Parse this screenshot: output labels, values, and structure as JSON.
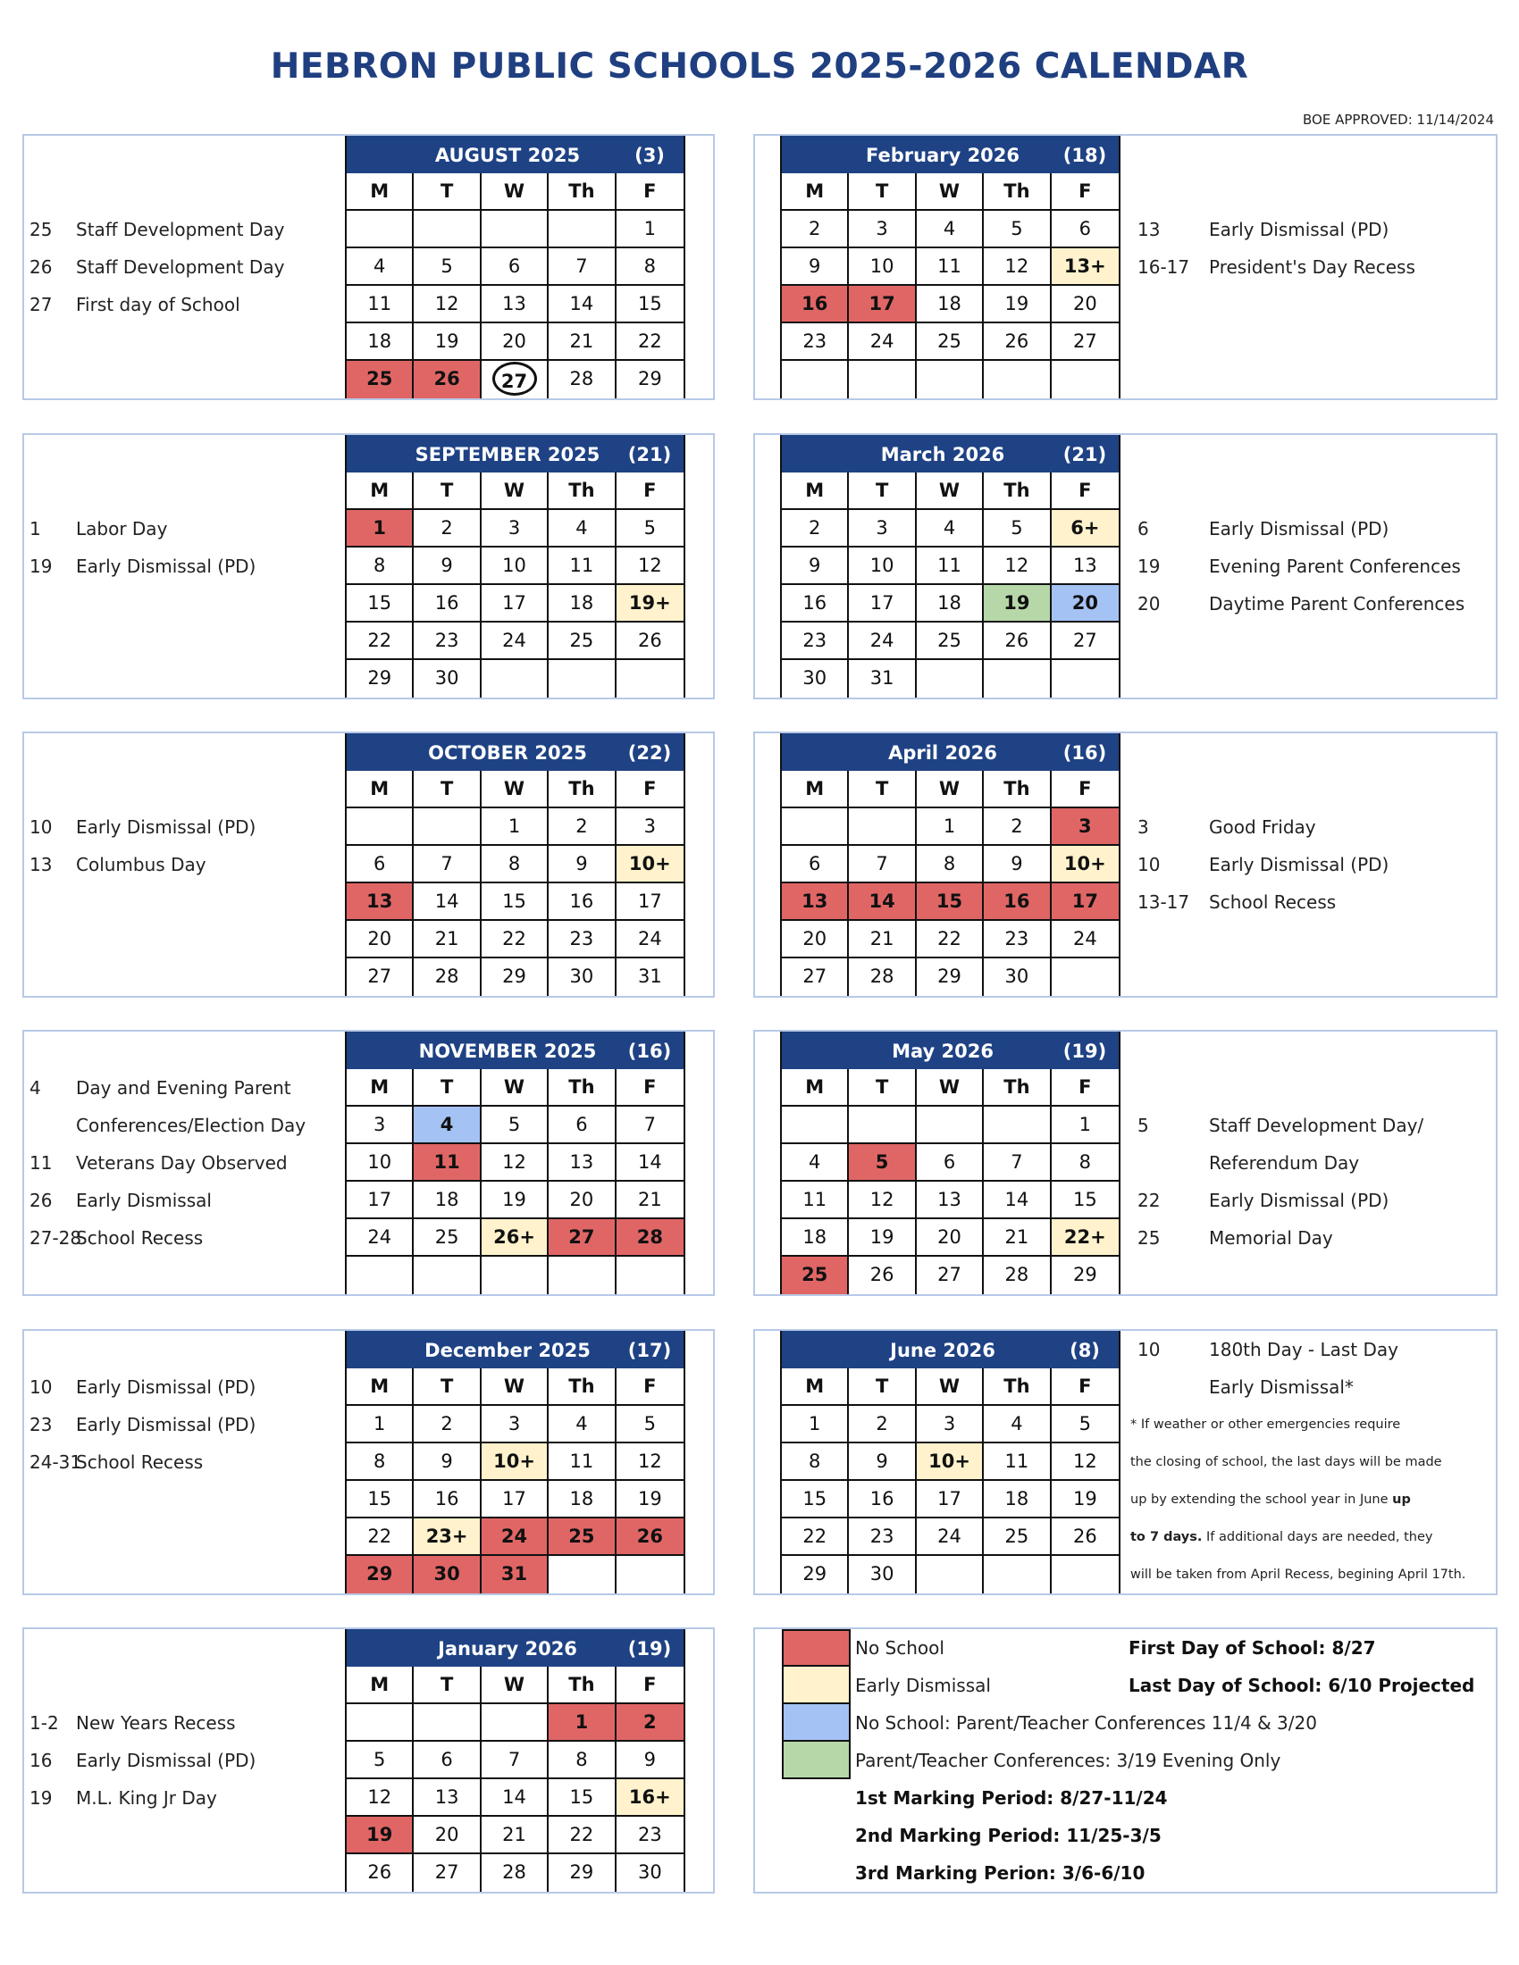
{
  "title": "HEBRON PUBLIC SCHOOLS 2025-2026 CALENDAR",
  "boe_approved": "BOE APPROVED: 11/14/2024",
  "dow": [
    "M",
    "T",
    "W",
    "Th",
    "F"
  ],
  "colors": {
    "header": "#1e4284",
    "no": "#e06666",
    "early": "#fff2cc",
    "conf": "#a4c2f4",
    "eve": "#b6d7a8",
    "title": "#1f3f80"
  },
  "months": [
    {
      "title": "AUGUST 2025",
      "count": "(3)",
      "weeks": [
        [
          "",
          "",
          "",
          "",
          "1"
        ],
        [
          "4",
          "5",
          "6",
          "7",
          "8"
        ],
        [
          "11",
          "12",
          "13",
          "14",
          "15"
        ],
        [
          "18",
          "19",
          "20",
          "21",
          "22"
        ],
        [
          "25",
          "26",
          "27",
          "28",
          "29"
        ]
      ],
      "marks": {
        "25": "no",
        "26": "no",
        "27": "circle"
      },
      "notes": [
        {
          "num": "25",
          "text": "Staff Development Day"
        },
        {
          "num": "26",
          "text": "Staff Development Day"
        },
        {
          "num": "27",
          "text": "First day of School"
        }
      ]
    },
    {
      "title": "February 2026",
      "count": "(18)",
      "weeks": [
        [
          "2",
          "3",
          "4",
          "5",
          "6"
        ],
        [
          "9",
          "10",
          "11",
          "12",
          "13+"
        ],
        [
          "16",
          "17",
          "18",
          "19",
          "20"
        ],
        [
          "23",
          "24",
          "25",
          "26",
          "27"
        ],
        [
          "",
          "",
          "",
          "",
          ""
        ]
      ],
      "marks": {
        "13+": "early",
        "16": "no",
        "17": "no"
      },
      "notes": [
        {
          "num": "13",
          "text": "Early Dismissal (PD)"
        },
        {
          "num": "16-17",
          "text": "President's Day Recess"
        }
      ]
    },
    {
      "title": "SEPTEMBER 2025",
      "count": "(21)",
      "weeks": [
        [
          "1",
          "2",
          "3",
          "4",
          "5"
        ],
        [
          "8",
          "9",
          "10",
          "11",
          "12"
        ],
        [
          "15",
          "16",
          "17",
          "18",
          "19+"
        ],
        [
          "22",
          "23",
          "24",
          "25",
          "26"
        ],
        [
          "29",
          "30",
          "",
          "",
          ""
        ]
      ],
      "marks": {
        "1": "no",
        "19+": "early"
      },
      "notes": [
        {
          "num": "1",
          "text": "Labor Day"
        },
        {
          "num": "19",
          "text": "Early Dismissal (PD)"
        }
      ]
    },
    {
      "title": "March 2026",
      "count": "(21)",
      "weeks": [
        [
          "2",
          "3",
          "4",
          "5",
          "6+"
        ],
        [
          "9",
          "10",
          "11",
          "12",
          "13"
        ],
        [
          "16",
          "17",
          "18",
          "19",
          "20"
        ],
        [
          "23",
          "24",
          "25",
          "26",
          "27"
        ],
        [
          "30",
          "31",
          "",
          "",
          ""
        ]
      ],
      "marks": {
        "6+": "early",
        "19": "eve",
        "20": "conf"
      },
      "notes": [
        {
          "num": "6",
          "text": "Early Dismissal (PD)"
        },
        {
          "num": "19",
          "text": "Evening Parent Conferences"
        },
        {
          "num": "20",
          "text": "Daytime Parent Conferences"
        }
      ]
    },
    {
      "title": "OCTOBER 2025",
      "count": "(22)",
      "weeks": [
        [
          "",
          "",
          "1",
          "2",
          "3"
        ],
        [
          "6",
          "7",
          "8",
          "9",
          "10+"
        ],
        [
          "13",
          "14",
          "15",
          "16",
          "17"
        ],
        [
          "20",
          "21",
          "22",
          "23",
          "24"
        ],
        [
          "27",
          "28",
          "29",
          "30",
          "31"
        ]
      ],
      "marks": {
        "10+": "early",
        "13": "no"
      },
      "notes": [
        {
          "num": "10",
          "text": "Early Dismissal (PD)"
        },
        {
          "num": "13",
          "text": "Columbus Day"
        }
      ]
    },
    {
      "title": "April 2026",
      "count": "(16)",
      "weeks": [
        [
          "",
          "",
          "1",
          "2",
          "3"
        ],
        [
          "6",
          "7",
          "8",
          "9",
          "10+"
        ],
        [
          "13",
          "14",
          "15",
          "16",
          "17"
        ],
        [
          "20",
          "21",
          "22",
          "23",
          "24"
        ],
        [
          "27",
          "28",
          "29",
          "30",
          ""
        ]
      ],
      "marks": {
        "3": "no",
        "10+": "early",
        "13": "no",
        "14": "no",
        "15": "no",
        "16": "no",
        "17": "no"
      },
      "notes": [
        {
          "num": "3",
          "text": "Good Friday"
        },
        {
          "num": "10",
          "text": "Early Dismissal (PD)"
        },
        {
          "num": "13-17",
          "text": "School Recess"
        }
      ]
    },
    {
      "title": "NOVEMBER 2025",
      "count": "(16)",
      "weeks": [
        [
          "3",
          "4",
          "5",
          "6",
          "7"
        ],
        [
          "10",
          "11",
          "12",
          "13",
          "14"
        ],
        [
          "17",
          "18",
          "19",
          "20",
          "21"
        ],
        [
          "24",
          "25",
          "26+",
          "27",
          "28"
        ],
        [
          "",
          "",
          "",
          "",
          ""
        ]
      ],
      "marks": {
        "4": "conf",
        "11": "no",
        "26+": "early",
        "27": "no",
        "28": "no"
      },
      "notes": [
        {
          "num": "4",
          "text": "Day and Evening Parent"
        },
        {
          "num": "",
          "text": "Conferences/Election Day"
        },
        {
          "num": "11",
          "text": "Veterans Day Observed"
        },
        {
          "num": "26",
          "text": "Early Dismissal"
        },
        {
          "num": "27-28",
          "text": "School Recess"
        }
      ]
    },
    {
      "title": "May 2026",
      "count": "(19)",
      "weeks": [
        [
          "",
          "",
          "",
          "",
          "1"
        ],
        [
          "4",
          "5",
          "6",
          "7",
          "8"
        ],
        [
          "11",
          "12",
          "13",
          "14",
          "15"
        ],
        [
          "18",
          "19",
          "20",
          "21",
          "22+"
        ],
        [
          "25",
          "26",
          "27",
          "28",
          "29"
        ]
      ],
      "marks": {
        "5": "no",
        "22+": "early",
        "25": "no"
      },
      "notes": [
        {
          "num": "5",
          "text": "Staff Development Day/"
        },
        {
          "num": "",
          "text": "Referendum Day"
        },
        {
          "num": "22",
          "text": "Early Dismissal (PD)"
        },
        {
          "num": "25",
          "text": "Memorial Day"
        }
      ]
    },
    {
      "title": "December 2025",
      "count": "(17)",
      "weeks": [
        [
          "1",
          "2",
          "3",
          "4",
          "5"
        ],
        [
          "8",
          "9",
          "10+",
          "11",
          "12"
        ],
        [
          "15",
          "16",
          "17",
          "18",
          "19"
        ],
        [
          "22",
          "23+",
          "24",
          "25",
          "26"
        ],
        [
          "29",
          "30",
          "31",
          "",
          ""
        ]
      ],
      "marks": {
        "10+": "early",
        "23+": "early",
        "24": "no",
        "25": "no",
        "26": "no",
        "29": "no",
        "30": "no",
        "31": "no"
      },
      "notes": [
        {
          "num": "10",
          "text": "Early Dismissal (PD)"
        },
        {
          "num": "23",
          "text": "Early Dismissal (PD)"
        },
        {
          "num": "24-31",
          "text": "School Recess"
        }
      ]
    },
    {
      "title": "June 2026",
      "count": "(8)",
      "weeks": [
        [
          "1",
          "2",
          "3",
          "4",
          "5"
        ],
        [
          "8",
          "9",
          "10+",
          "11",
          "12"
        ],
        [
          "15",
          "16",
          "17",
          "18",
          "19"
        ],
        [
          "22",
          "23",
          "24",
          "25",
          "26"
        ],
        [
          "29",
          "30",
          "",
          "",
          ""
        ]
      ],
      "marks": {
        "10+": "early"
      },
      "notes": [
        {
          "num": "10",
          "text": "180th Day - Last Day"
        },
        {
          "num": "",
          "text": "Early Dismissal*"
        }
      ]
    },
    {
      "title": "January 2026",
      "count": "(19)",
      "weeks": [
        [
          "",
          "",
          "",
          "1",
          "2"
        ],
        [
          "5",
          "6",
          "7",
          "8",
          "9"
        ],
        [
          "12",
          "13",
          "14",
          "15",
          "16+"
        ],
        [
          "19",
          "20",
          "21",
          "22",
          "23"
        ],
        [
          "26",
          "27",
          "28",
          "29",
          "30"
        ]
      ],
      "marks": {
        "1": "no",
        "2": "no",
        "16+": "early",
        "19": "no"
      },
      "notes": [
        {
          "num": "1-2",
          "text": "New Years Recess"
        },
        {
          "num": "16",
          "text": "Early Dismissal (PD)"
        },
        {
          "num": "19",
          "text": "M.L. King Jr Day"
        }
      ]
    }
  ],
  "june_footnote": [
    [
      {
        "t": "* If weather or other emergencies require",
        "b": false
      }
    ],
    [
      {
        "t": "the closing of school, the last days will be made",
        "b": false
      }
    ],
    [
      {
        "t": "up by extending the school year in June ",
        "b": false
      },
      {
        "t": "up",
        "b": true
      }
    ],
    [
      {
        "t": "to 7 days.",
        "b": true
      },
      {
        "t": " If additional days are needed, they",
        "b": false
      }
    ],
    [
      {
        "t": "will be taken from April Recess, begining April 17th.",
        "b": false
      }
    ]
  ],
  "legend": {
    "items": [
      {
        "type": "no",
        "label": "No School"
      },
      {
        "type": "early",
        "label": "Early Dismissal"
      },
      {
        "type": "conf",
        "label": "No School: Parent/Teacher Conferences 11/4 & 3/20"
      },
      {
        "type": "eve",
        "label": "Parent/Teacher Conferences: 3/19 Evening Only"
      }
    ],
    "first_day": "First Day of School: 8/27",
    "last_day": "Last Day of School: 6/10 Projected",
    "marking_periods": [
      "1st Marking Period: 8/27-11/24",
      "2nd Marking Period: 11/25-3/5",
      "3rd Marking Perion: 3/6-6/10"
    ]
  }
}
